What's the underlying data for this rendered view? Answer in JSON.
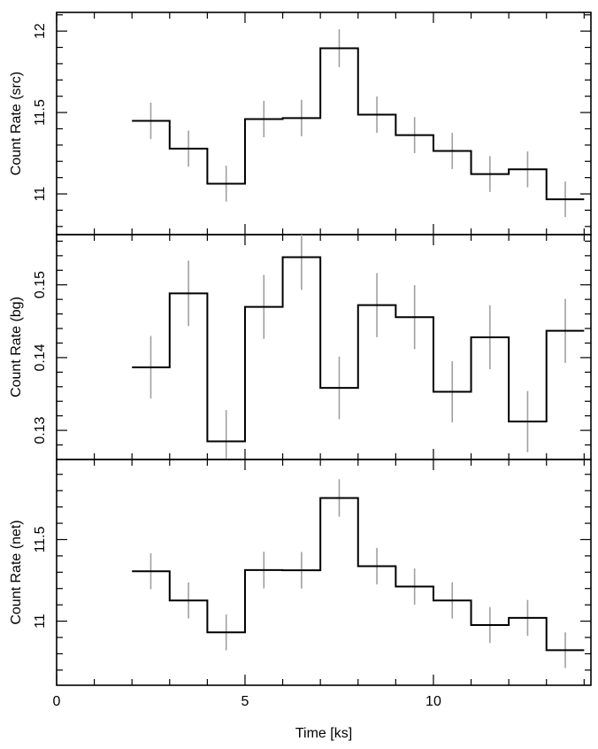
{
  "chart_data": {
    "type": "line",
    "style": "step-histogram with error bars",
    "xlabel": "Time [ks]",
    "xlim": [
      0,
      14.18
    ],
    "xticks": [
      0,
      5,
      10
    ],
    "x_minor_step": 1,
    "bin_edges": [
      2,
      3,
      4,
      5,
      6,
      7,
      8,
      9,
      10,
      11,
      12,
      13,
      14
    ],
    "x": [
      2.5,
      3.5,
      4.5,
      5.5,
      6.5,
      7.5,
      8.5,
      9.5,
      10.5,
      11.5,
      12.5,
      13.5
    ],
    "panels": [
      {
        "ylabel": "Count Rate (src)",
        "ylim": [
          10.75,
          12.115
        ],
        "yticks": [
          11,
          11.5,
          12
        ],
        "ytick_labels": [
          "11",
          "11.5",
          "12"
        ],
        "y_minor_step": 0.1,
        "values": [
          11.449,
          11.278,
          11.063,
          11.46,
          11.466,
          11.895,
          11.487,
          11.361,
          11.264,
          11.122,
          11.151,
          10.967
        ],
        "errors": [
          0.112,
          0.111,
          0.11,
          0.112,
          0.112,
          0.116,
          0.112,
          0.111,
          0.111,
          0.11,
          0.11,
          0.109
        ]
      },
      {
        "ylabel": "Count Rate (bg)",
        "ylim": [
          0.126,
          0.1569
        ],
        "yticks": [
          0.13,
          0.14,
          0.15
        ],
        "ytick_labels": [
          "0.13",
          "0.14",
          "0.15"
        ],
        "y_minor_step": 0.002,
        "values": [
          0.13867,
          0.14883,
          0.1285,
          0.14697,
          0.1538,
          0.13584,
          0.14721,
          0.14556,
          0.13531,
          0.14279,
          0.13121,
          0.14368
        ],
        "errors": [
          0.0043,
          0.0045,
          0.0043,
          0.0044,
          0.0045,
          0.0043,
          0.0044,
          0.0044,
          0.0042,
          0.0044,
          0.0042,
          0.0044
        ]
      },
      {
        "ylabel": "Count Rate (net)",
        "ylim": [
          10.607,
          11.991
        ],
        "yticks": [
          11,
          11.5
        ],
        "ytick_labels": [
          "11",
          "11.5"
        ],
        "y_minor_step": 0.1,
        "values": [
          11.306,
          11.127,
          10.931,
          11.313,
          11.312,
          11.755,
          11.337,
          11.212,
          11.127,
          10.976,
          11.02,
          10.822
        ],
        "errors": [
          0.11,
          0.11,
          0.11,
          0.112,
          0.112,
          0.115,
          0.112,
          0.111,
          0.111,
          0.11,
          0.11,
          0.109
        ]
      }
    ],
    "grid": false,
    "colors": {
      "line": "#000000",
      "errorbar": "#a0a0a0"
    }
  }
}
